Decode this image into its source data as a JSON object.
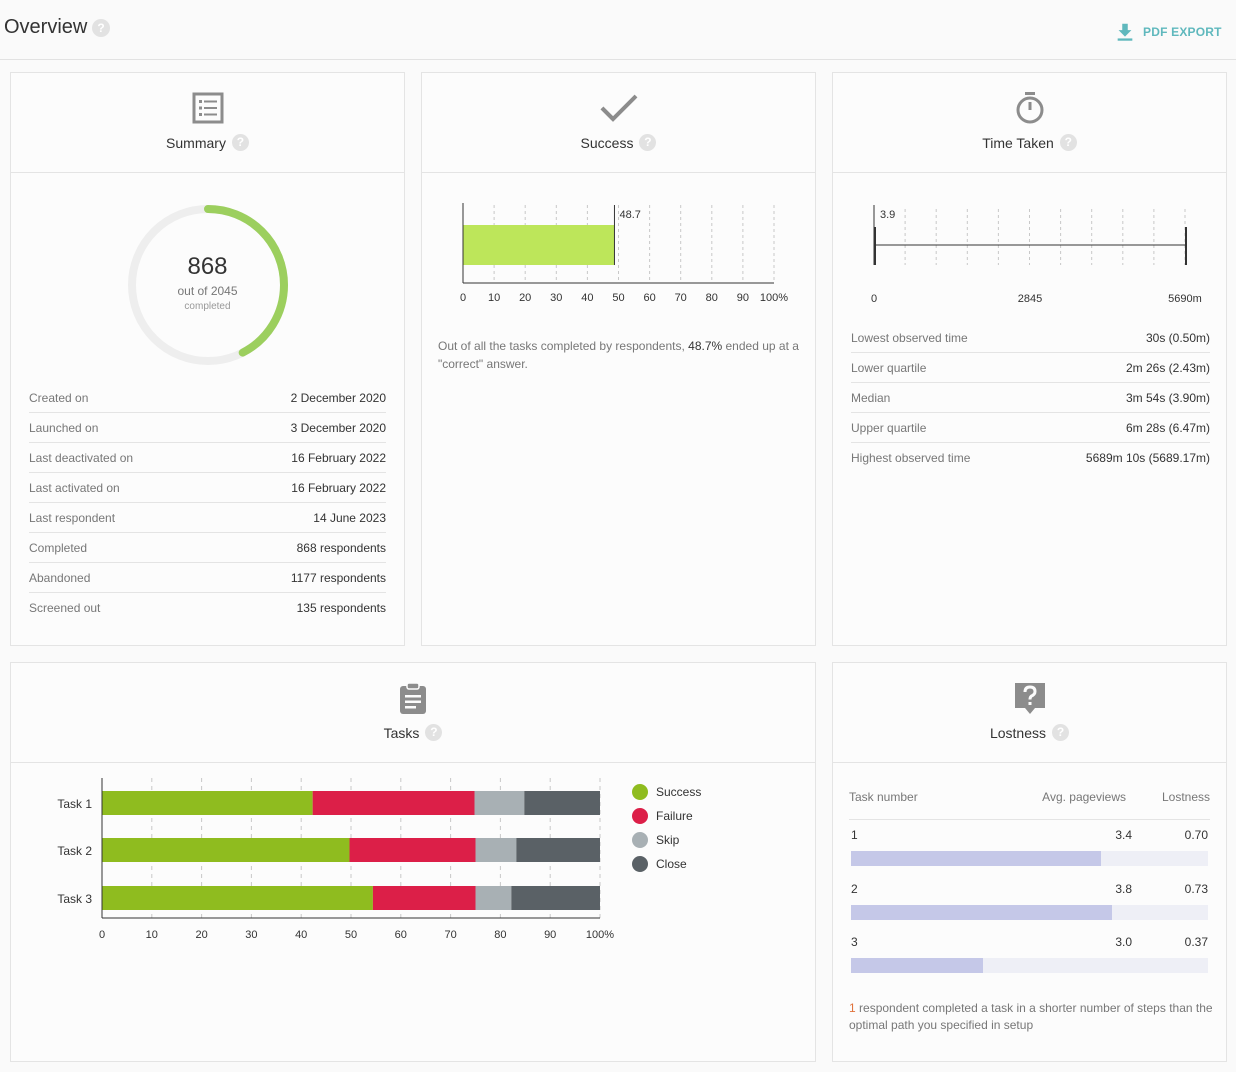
{
  "header": {
    "title": "Overview",
    "export_label": "PDF EXPORT",
    "accent": "#5fb8bd"
  },
  "summary": {
    "title": "Summary",
    "completed": "868",
    "out_of": "out of 2045",
    "completed_label": "completed",
    "progress_fraction": 0.4244,
    "rows": [
      {
        "label": "Created on",
        "value": "2 December 2020"
      },
      {
        "label": "Launched on",
        "value": "3 December 2020"
      },
      {
        "label": "Last deactivated on",
        "value": "16 February 2022"
      },
      {
        "label": "Last activated on",
        "value": "16 February 2022"
      },
      {
        "label": "Last respondent",
        "value": "14 June 2023"
      },
      {
        "label": "Completed",
        "value": "868 respondents"
      },
      {
        "label": "Abandoned",
        "value": "1177 respondents"
      },
      {
        "label": "Screened out",
        "value": "135 respondents"
      }
    ]
  },
  "success": {
    "title": "Success",
    "value": 48.7,
    "value_label": "48.7",
    "ticks": [
      "0",
      "10",
      "20",
      "30",
      "40",
      "50",
      "60",
      "70",
      "80",
      "90",
      "100%"
    ],
    "note_prefix": "Out of all the tasks completed by respondents, ",
    "note_value": "48.7%",
    "note_suffix": " ended up at a \"correct\" answer.",
    "bar_color": "#bde65a"
  },
  "time": {
    "title": "Time Taken",
    "median_label": "3.9",
    "ticks": [
      "0",
      "2845",
      "5690m"
    ],
    "rows": [
      {
        "label": "Lowest observed time",
        "value": "30s (0.50m)"
      },
      {
        "label": "Lower quartile",
        "value": "2m 26s (2.43m)"
      },
      {
        "label": "Median",
        "value": "3m 54s (3.90m)"
      },
      {
        "label": "Upper quartile",
        "value": "6m 28s (6.47m)"
      },
      {
        "label": "Highest observed time",
        "value": "5689m 10s (5689.17m)"
      }
    ]
  },
  "tasks": {
    "title": "Tasks",
    "legend": [
      {
        "name": "Success",
        "color": "#8fbc1f"
      },
      {
        "name": "Failure",
        "color": "#dc1f48"
      },
      {
        "name": "Skip",
        "color": "#a8b0b4"
      },
      {
        "name": "Close",
        "color": "#5a6166"
      }
    ]
  },
  "chart_data": {
    "type": "bar",
    "orientation": "horizontal",
    "stacked": true,
    "categories": [
      "Task 1",
      "Task 2",
      "Task 3"
    ],
    "series": [
      {
        "name": "Success",
        "values": [
          42.3,
          49.7,
          54.4
        ]
      },
      {
        "name": "Failure",
        "values": [
          32.5,
          25.3,
          20.6
        ]
      },
      {
        "name": "Skip",
        "values": [
          10.0,
          8.2,
          7.2
        ]
      },
      {
        "name": "Close",
        "values": [
          15.2,
          16.8,
          17.8
        ]
      }
    ],
    "ticks": [
      "0",
      "10",
      "20",
      "30",
      "40",
      "50",
      "60",
      "70",
      "80",
      "90",
      "100%"
    ],
    "xlim": [
      0,
      100
    ],
    "grid": true,
    "legend_position": "right"
  },
  "lostness": {
    "title": "Lostness",
    "headers": {
      "task": "Task number",
      "pageviews": "Avg. pageviews",
      "lostness": "Lostness"
    },
    "rows": [
      {
        "task": "1",
        "pageviews": "3.4",
        "lostness": "0.70",
        "fraction": 0.7
      },
      {
        "task": "2",
        "pageviews": "3.8",
        "lostness": "0.73",
        "fraction": 0.73
      },
      {
        "task": "3",
        "pageviews": "3.0",
        "lostness": "0.37",
        "fraction": 0.37
      }
    ],
    "note_count": "1",
    "note_text": " respondent completed a task in a shorter number of steps than the optimal path you specified in setup"
  }
}
